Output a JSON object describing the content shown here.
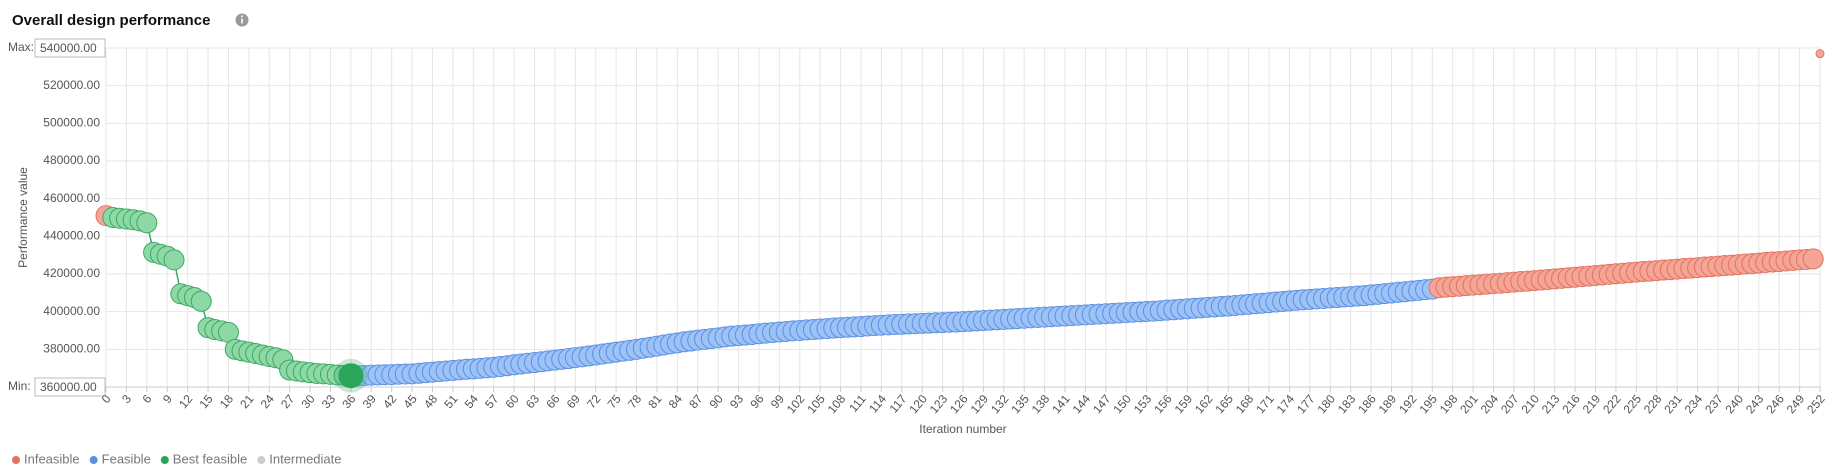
{
  "chart_data": {
    "type": "scatter",
    "title": "Overall design performance",
    "xlabel": "Iteration number",
    "ylabel": "Performance value",
    "max_label": "Max:",
    "min_label": "Min:",
    "xlim": [
      0,
      252
    ],
    "ylim": [
      360000,
      540000
    ],
    "grid": true,
    "legend": "bottom-left",
    "yticks": [
      {
        "value": 360000,
        "label": "360000.00"
      },
      {
        "value": 380000,
        "label": "380000.00"
      },
      {
        "value": 400000,
        "label": "400000.00"
      },
      {
        "value": 420000,
        "label": "420000.00"
      },
      {
        "value": 440000,
        "label": "440000.00"
      },
      {
        "value": 460000,
        "label": "460000.00"
      },
      {
        "value": 480000,
        "label": "480000.00"
      },
      {
        "value": 500000,
        "label": "500000.00"
      },
      {
        "value": 520000,
        "label": "520000.00"
      },
      {
        "value": 540000,
        "label": "540000.00"
      }
    ],
    "xticks": [
      0,
      3,
      6,
      9,
      12,
      15,
      18,
      21,
      24,
      27,
      30,
      33,
      36,
      39,
      42,
      45,
      48,
      51,
      54,
      57,
      60,
      63,
      66,
      69,
      72,
      75,
      78,
      81,
      84,
      87,
      90,
      93,
      96,
      99,
      102,
      105,
      108,
      111,
      114,
      117,
      120,
      123,
      126,
      129,
      132,
      135,
      138,
      141,
      144,
      147,
      150,
      153,
      156,
      159,
      162,
      165,
      168,
      171,
      174,
      177,
      180,
      183,
      186,
      189,
      192,
      195,
      198,
      201,
      204,
      207,
      210,
      213,
      216,
      219,
      222,
      225,
      228,
      231,
      234,
      237,
      240,
      243,
      246,
      249,
      252
    ],
    "series": [
      {
        "name": "Infeasible",
        "color": "#f4a595",
        "stroke": "#e2725f",
        "x": [
          0,
          196,
          197,
          198,
          199,
          200,
          201,
          202,
          203,
          204,
          205,
          206,
          207,
          208,
          209,
          210,
          211,
          212,
          213,
          214,
          215,
          216,
          217,
          218,
          219,
          220,
          221,
          222,
          223,
          224,
          225,
          226,
          227,
          228,
          229,
          230,
          231,
          232,
          233,
          234,
          235,
          236,
          237,
          238,
          239,
          240,
          241,
          242,
          243,
          244,
          245,
          246,
          247,
          248,
          249,
          250,
          251,
          252
        ],
        "values": [
          451000,
          412700,
          413000,
          413300,
          413500,
          413800,
          414100,
          414300,
          414600,
          414900,
          415100,
          415400,
          415700,
          416000,
          416200,
          416500,
          416800,
          417100,
          417400,
          417700,
          418000,
          418300,
          418600,
          418900,
          419200,
          419500,
          419800,
          420100,
          420400,
          420700,
          421000,
          421300,
          421500,
          421800,
          422100,
          422300,
          422600,
          422900,
          423100,
          423400,
          423700,
          423900,
          424200,
          424500,
          424700,
          425000,
          425300,
          425500,
          425800,
          426100,
          426400,
          426600,
          426900,
          427200,
          427500,
          427700,
          428000,
          537000
        ]
      },
      {
        "name": "Feasible",
        "color": "#9dc2f6",
        "stroke": "#5a8fe2",
        "x": [
          37,
          38,
          39,
          40,
          41,
          42,
          43,
          44,
          45,
          46,
          47,
          48,
          49,
          50,
          51,
          52,
          53,
          54,
          55,
          56,
          57,
          58,
          59,
          60,
          61,
          62,
          63,
          64,
          65,
          66,
          67,
          68,
          69,
          70,
          71,
          72,
          73,
          74,
          75,
          76,
          77,
          78,
          79,
          80,
          81,
          82,
          83,
          84,
          85,
          86,
          87,
          88,
          89,
          90,
          91,
          92,
          93,
          94,
          95,
          96,
          97,
          98,
          99,
          100,
          101,
          102,
          103,
          104,
          105,
          106,
          107,
          108,
          109,
          110,
          111,
          112,
          113,
          114,
          115,
          116,
          117,
          118,
          119,
          120,
          121,
          122,
          123,
          124,
          125,
          126,
          127,
          128,
          129,
          130,
          131,
          132,
          133,
          134,
          135,
          136,
          137,
          138,
          139,
          140,
          141,
          142,
          143,
          144,
          145,
          146,
          147,
          148,
          149,
          150,
          151,
          152,
          153,
          154,
          155,
          156,
          157,
          158,
          159,
          160,
          161,
          162,
          163,
          164,
          165,
          166,
          167,
          168,
          169,
          170,
          171,
          172,
          173,
          174,
          175,
          176,
          177,
          178,
          179,
          180,
          181,
          182,
          183,
          184,
          185,
          186,
          187,
          188,
          189,
          190,
          191,
          192,
          193,
          194,
          195
        ],
        "values": [
          366000,
          366100,
          366300,
          366400,
          366500,
          366600,
          366800,
          366900,
          367000,
          367300,
          367600,
          367900,
          368200,
          368500,
          368800,
          369100,
          369400,
          369600,
          369900,
          370200,
          370500,
          370900,
          371300,
          371800,
          372200,
          372600,
          373000,
          373400,
          373900,
          374300,
          374700,
          375100,
          375600,
          376000,
          376500,
          377000,
          377500,
          378000,
          378500,
          379000,
          379500,
          380000,
          380600,
          381100,
          381700,
          382300,
          382900,
          383400,
          384000,
          384400,
          384900,
          385300,
          385700,
          386100,
          386600,
          387000,
          387300,
          387600,
          387900,
          388300,
          388600,
          388900,
          389200,
          389500,
          389800,
          390000,
          390300,
          390500,
          390800,
          391000,
          391300,
          391500,
          391700,
          391900,
          392100,
          392400,
          392600,
          392800,
          393000,
          393200,
          393300,
          393500,
          393600,
          393800,
          393900,
          394100,
          394200,
          394400,
          394500,
          394700,
          394900,
          395100,
          395300,
          395500,
          395700,
          395900,
          396100,
          396300,
          396500,
          396700,
          396900,
          397100,
          397300,
          397500,
          397700,
          397900,
          398100,
          398300,
          398500,
          398700,
          398900,
          399100,
          399300,
          399500,
          399700,
          399900,
          400100,
          400300,
          400500,
          400800,
          401000,
          401300,
          401500,
          401800,
          402000,
          402300,
          402500,
          402800,
          403000,
          403300,
          403600,
          403900,
          404200,
          404500,
          404800,
          405100,
          405400,
          405700,
          406000,
          406300,
          406500,
          406800,
          407000,
          407300,
          407500,
          407800,
          408000,
          408300,
          408500,
          408900,
          409200,
          409600,
          409900,
          410300,
          410600,
          411000,
          411300,
          411700,
          412000
        ]
      },
      {
        "name": "Best feasible",
        "color": "#8ed8a6",
        "stroke": "#3ca865",
        "highlight_color": "#2ba55a",
        "x": [
          1,
          2,
          3,
          4,
          5,
          6,
          7,
          8,
          9,
          10,
          11,
          12,
          13,
          14,
          15,
          16,
          17,
          18,
          19,
          20,
          21,
          22,
          23,
          24,
          25,
          26,
          27,
          28,
          29,
          30,
          31,
          32,
          33,
          34,
          35,
          36
        ],
        "values": [
          450000,
          449600,
          449200,
          448800,
          448200,
          447200,
          431500,
          430500,
          429500,
          427500,
          409500,
          408500,
          407500,
          405500,
          391500,
          390500,
          389800,
          389000,
          380000,
          379200,
          378500,
          377800,
          377000,
          376200,
          375500,
          374500,
          369000,
          368500,
          368000,
          367600,
          367200,
          367000,
          366700,
          366400,
          366200,
          366000
        ]
      },
      {
        "name": "Intermediate",
        "color": "#cccccc",
        "stroke": "#aaaaaa",
        "x": [],
        "values": []
      }
    ]
  }
}
